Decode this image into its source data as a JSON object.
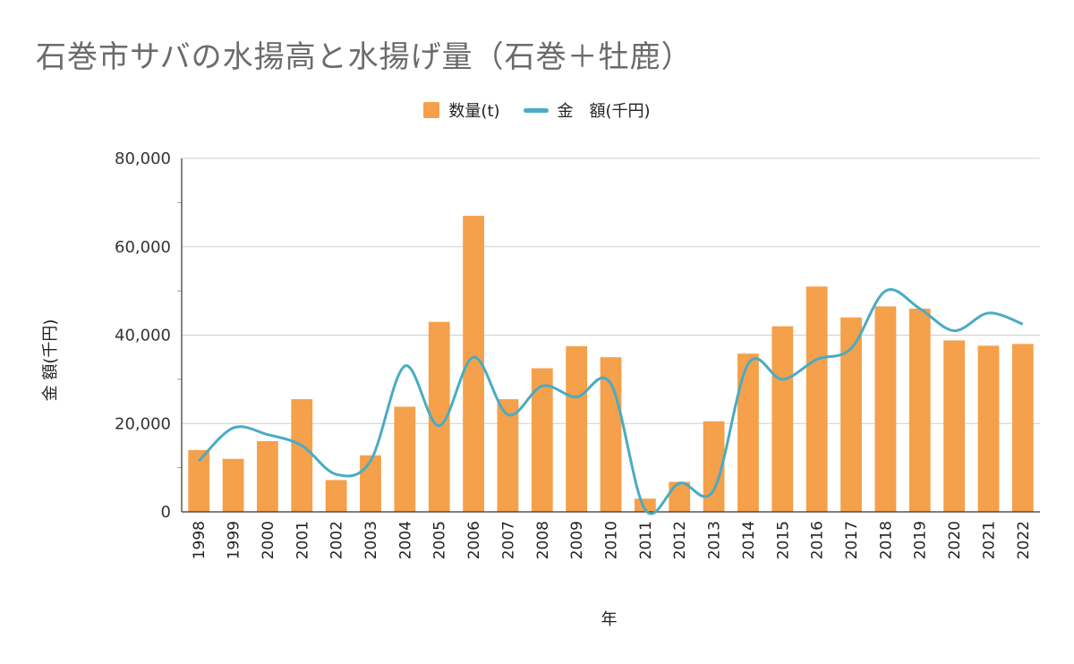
{
  "chart_data": {
    "type": "bar",
    "title": "石巻市サバの水揚高と水揚げ量（石巻＋牡鹿）",
    "xlabel": "年",
    "ylabel": "金 額(千円)",
    "ylim": [
      0,
      80000
    ],
    "yticks": [
      "0",
      "20,000",
      "40,000",
      "60,000",
      "80,000"
    ],
    "categories": [
      "1998",
      "1999",
      "2000",
      "2001",
      "2002",
      "2003",
      "2004",
      "2005",
      "2006",
      "2007",
      "2008",
      "2009",
      "2010",
      "2011",
      "2012",
      "2013",
      "2014",
      "2015",
      "2016",
      "2017",
      "2018",
      "2019",
      "2020",
      "2021",
      "2022"
    ],
    "series": [
      {
        "name": "数量(t)",
        "type": "bar",
        "color": "#f5a04a",
        "values": [
          14000,
          12000,
          16000,
          25500,
          7200,
          12800,
          23800,
          43000,
          67000,
          25500,
          32500,
          37500,
          35000,
          3000,
          6800,
          20500,
          35800,
          42000,
          51000,
          44000,
          46500,
          46000,
          38800,
          37600,
          38000
        ]
      },
      {
        "name": "金　額(千円)",
        "type": "line",
        "color": "#4aabc4",
        "values": [
          11500,
          19000,
          17500,
          15000,
          8500,
          11500,
          33000,
          19500,
          35000,
          22000,
          28500,
          26000,
          29000,
          500,
          6500,
          5000,
          33500,
          30000,
          34500,
          37000,
          50000,
          46000,
          41000,
          45000,
          42500
        ]
      }
    ],
    "grid": true,
    "legend_position": "top-center"
  }
}
